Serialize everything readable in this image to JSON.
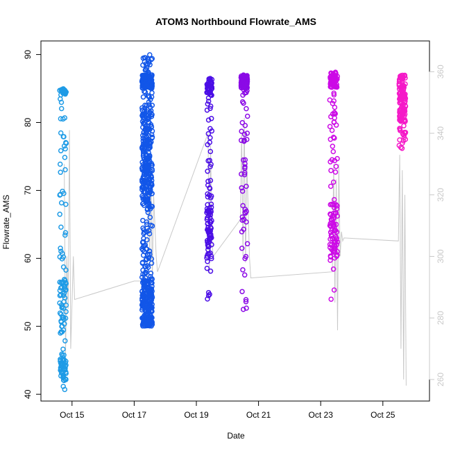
{
  "chart_data": {
    "type": "scatter",
    "title": "ATOM3 Northbound Flowrate_AMS",
    "xlabel": "Date",
    "ylabel": "Flowrate_AMS",
    "xlim": [
      "2023-10-14T00:00",
      "2023-10-26T12:00"
    ],
    "ylim": [
      39,
      92
    ],
    "x_ticks": [
      {
        "label": "Oct 15",
        "date": "2023-10-15"
      },
      {
        "label": "Oct 17",
        "date": "2023-10-17"
      },
      {
        "label": "Oct 19",
        "date": "2023-10-19"
      },
      {
        "label": "Oct 21",
        "date": "2023-10-21"
      },
      {
        "label": "Oct 23",
        "date": "2023-10-23"
      },
      {
        "label": "Oct 25",
        "date": "2023-10-25"
      }
    ],
    "y_ticks": [
      40,
      50,
      60,
      70,
      80,
      90
    ],
    "y2_ticks": [
      260,
      280,
      300,
      320,
      340,
      360
    ],
    "y2lim": [
      253,
      370
    ],
    "grid": false,
    "series": [
      {
        "color": "#1E9BE6",
        "clusters": [
          {
            "date": "2023-10-14T17:00",
            "width_hours": 5,
            "min": 40,
            "max": 85,
            "count": 160,
            "dense_bands": [
              [
                84,
                85
              ],
              [
                49,
                57
              ],
              [
                42,
                46
              ]
            ]
          }
        ]
      },
      {
        "color": "#1256E8",
        "clusters": [
          {
            "date": "2023-10-17T10:00",
            "width_hours": 8,
            "min": 50,
            "max": 90,
            "count": 700,
            "dense_bands": [
              [
                85,
                87
              ],
              [
                68,
                82
              ],
              [
                50,
                57
              ]
            ]
          }
        ]
      },
      {
        "color": "#4B0EE6",
        "clusters": [
          {
            "date": "2023-10-19T10:00",
            "width_hours": 4,
            "min": 54,
            "max": 86.5,
            "count": 140,
            "dense_bands": [
              [
                84,
                86.5
              ],
              [
                60,
                68
              ]
            ]
          }
        ]
      },
      {
        "color": "#8B0AE6",
        "clusters": [
          {
            "date": "2023-10-20T13:00",
            "width_hours": 5,
            "min": 52,
            "max": 87,
            "count": 140,
            "dense_bands": [
              [
                85,
                87
              ]
            ]
          }
        ]
      },
      {
        "color": "#CC0AE6",
        "clusters": [
          {
            "date": "2023-10-23T10:00",
            "width_hours": 6,
            "min": 53,
            "max": 87.5,
            "count": 160,
            "dense_bands": [
              [
                85,
                87.5
              ],
              [
                60,
                68
              ]
            ]
          }
        ]
      },
      {
        "color": "#F51AC8",
        "clusters": [
          {
            "date": "2023-10-25T15:00",
            "width_hours": 5,
            "min": 76,
            "max": 87,
            "count": 140,
            "dense_bands": [
              [
                80,
                87
              ]
            ]
          }
        ]
      }
    ],
    "secondary_line": {
      "color": "#c8c8c8",
      "axis": "right",
      "points": [
        [
          "2023-10-14T18:00",
          330
        ],
        [
          "2023-10-14T19:00",
          268
        ],
        [
          "2023-10-14T20:00",
          300
        ],
        [
          "2023-10-14T21:00",
          283
        ],
        [
          "2023-10-14T22:00",
          341
        ],
        [
          "2023-10-14T23:00",
          270
        ],
        [
          "2023-10-15T00:00",
          285
        ],
        [
          "2023-10-15T01:00",
          300
        ],
        [
          "2023-10-15T02:00",
          286
        ],
        [
          "2023-10-17T00:00",
          292
        ],
        [
          "2023-10-17T10:00",
          292
        ],
        [
          "2023-10-17T11:00",
          325
        ],
        [
          "2023-10-17T12:00",
          300
        ],
        [
          "2023-10-17T13:00",
          330
        ],
        [
          "2023-10-17T14:00",
          292
        ],
        [
          "2023-10-17T15:00",
          320
        ],
        [
          "2023-10-17T16:00",
          310
        ],
        [
          "2023-10-17T17:00",
          300
        ],
        [
          "2023-10-17T18:00",
          295
        ],
        [
          "2023-10-19T09:00",
          340
        ],
        [
          "2023-10-19T10:00",
          295
        ],
        [
          "2023-10-19T11:00",
          336
        ],
        [
          "2023-10-19T12:00",
          305
        ],
        [
          "2023-10-19T13:00",
          300
        ],
        [
          "2023-10-20T10:00",
          312
        ],
        [
          "2023-10-20T11:00",
          340
        ],
        [
          "2023-10-20T12:00",
          300
        ],
        [
          "2023-10-20T13:00",
          345
        ],
        [
          "2023-10-20T14:00",
          298
        ],
        [
          "2023-10-20T15:00",
          330
        ],
        [
          "2023-10-20T16:00",
          315
        ],
        [
          "2023-10-20T17:00",
          300
        ],
        [
          "2023-10-20T18:00",
          293
        ],
        [
          "2023-10-23T09:00",
          295
        ],
        [
          "2023-10-23T10:00",
          330
        ],
        [
          "2023-10-23T11:00",
          285
        ],
        [
          "2023-10-23T12:00",
          325
        ],
        [
          "2023-10-23T13:00",
          276
        ],
        [
          "2023-10-23T14:00",
          330
        ],
        [
          "2023-10-23T15:00",
          300
        ],
        [
          "2023-10-23T16:00",
          308
        ],
        [
          "2023-10-23T17:00",
          305
        ],
        [
          "2023-10-23T18:00",
          306
        ],
        [
          "2023-10-25T12:00",
          305
        ],
        [
          "2023-10-25T13:00",
          333
        ],
        [
          "2023-10-25T14:00",
          270
        ],
        [
          "2023-10-25T15:00",
          328
        ],
        [
          "2023-10-25T16:00",
          260
        ],
        [
          "2023-10-25T17:00",
          320
        ],
        [
          "2023-10-25T18:00",
          258
        ]
      ]
    }
  }
}
